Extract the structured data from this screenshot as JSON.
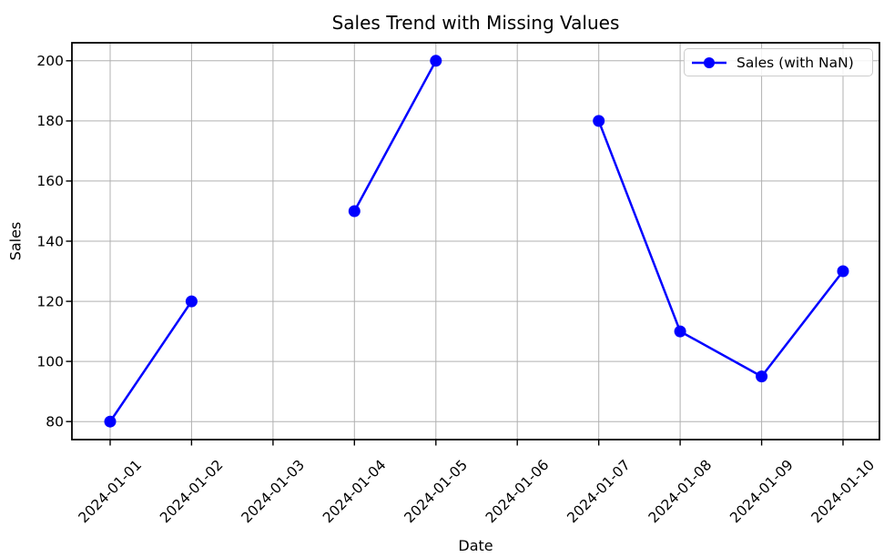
{
  "chart_data": {
    "type": "line",
    "title": "Sales Trend with Missing Values",
    "xlabel": "Date",
    "ylabel": "Sales",
    "categories": [
      "2024-01-01",
      "2024-01-02",
      "2024-01-03",
      "2024-01-04",
      "2024-01-05",
      "2024-01-06",
      "2024-01-07",
      "2024-01-08",
      "2024-01-09",
      "2024-01-10"
    ],
    "series": [
      {
        "name": "Sales (with NaN)",
        "color": "#0000ff",
        "marker": "circle",
        "values": [
          80,
          120,
          null,
          150,
          200,
          null,
          180,
          110,
          95,
          130
        ]
      }
    ],
    "yticks": [
      80,
      100,
      120,
      140,
      160,
      180,
      200
    ],
    "ylim": [
      74,
      206
    ],
    "grid": true,
    "x_tick_rotation": 45,
    "legend_position": "upper right"
  },
  "colors": {
    "background": "#ffffff",
    "grid": "#b0b0b0",
    "axis": "#000000",
    "text": "#000000",
    "legend_border": "#cccccc",
    "legend_background": "#ffffff"
  }
}
